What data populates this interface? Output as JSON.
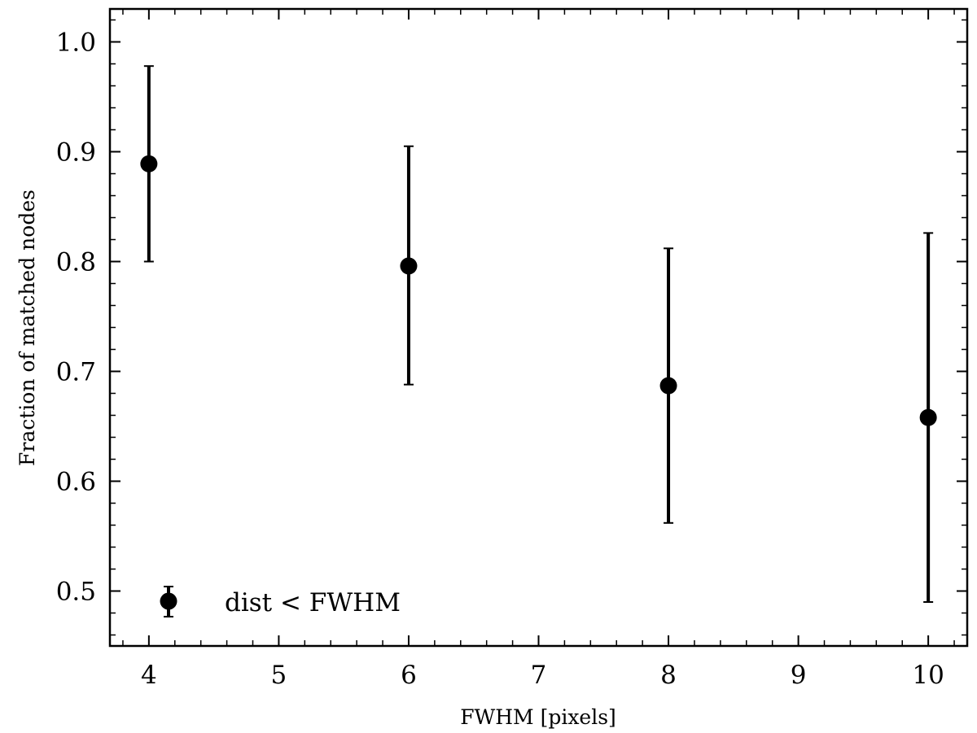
{
  "chart_data": {
    "type": "scatter",
    "title": "",
    "xlabel": "FWHM [pixels]",
    "ylabel": "Fraction of matched nodes",
    "xlim": [
      3.7,
      10.3
    ],
    "ylim": [
      0.45,
      1.03
    ],
    "xticks": [
      4,
      5,
      6,
      7,
      8,
      9,
      10
    ],
    "yticks": [
      0.5,
      0.6,
      0.7,
      0.8,
      0.9,
      1.0
    ],
    "xtick_labels": [
      "4",
      "5",
      "6",
      "7",
      "8",
      "9",
      "10"
    ],
    "ytick_labels": [
      "0.5",
      "0.6",
      "0.7",
      "0.8",
      "0.9",
      "1.0"
    ],
    "grid": false,
    "legend_position": "lower-left",
    "series": [
      {
        "name": "dist < FWHM",
        "color": "#000000",
        "x": [
          4,
          6,
          8,
          10
        ],
        "y": [
          0.889,
          0.796,
          0.687,
          0.658
        ],
        "yerr_low": [
          0.089,
          0.108,
          0.125,
          0.168
        ],
        "yerr_high": [
          0.089,
          0.109,
          0.125,
          0.168
        ]
      }
    ]
  }
}
